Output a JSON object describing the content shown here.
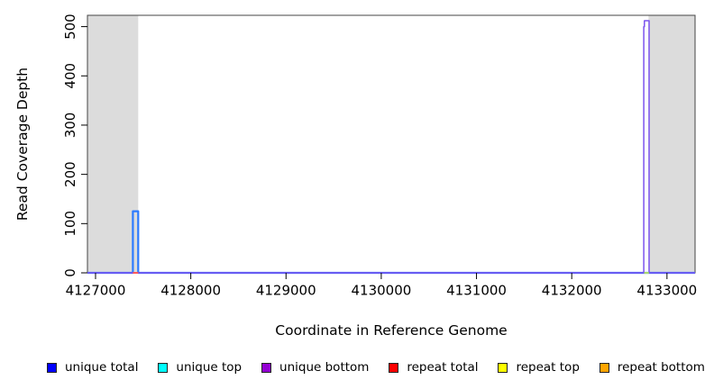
{
  "figure": {
    "background": "#FFFFFF",
    "xlabel": "Coordinate in Reference Genome",
    "ylabel": "Read Coverage Depth"
  },
  "chart_data": {
    "type": "line",
    "title": "",
    "xlabel": "Coordinate in Reference Genome",
    "ylabel": "Read Coverage Depth",
    "xlim": [
      4126915,
      4133295
    ],
    "ylim": [
      0,
      523
    ],
    "xticks": [
      4127000,
      4128000,
      4129000,
      4130000,
      4131000,
      4132000,
      4133000
    ],
    "yticks": [
      0,
      100,
      200,
      300,
      400,
      500
    ],
    "grid": false,
    "legend_position": "bottom",
    "box_color": "#444444",
    "shaded_regions": [
      {
        "name": "left-flank-region",
        "x0": 4126915,
        "x1": 4127448,
        "color": "#DCDCDC"
      },
      {
        "name": "right-flank-region",
        "x0": 4132806,
        "x1": 4133295,
        "color": "#DCDCDC"
      }
    ],
    "series": [
      {
        "name": "unique total",
        "legend_color": "#0000FF",
        "stroke": "#2e7bff",
        "width": 2.2,
        "points": [
          [
            4126915,
            0
          ],
          [
            4127392,
            0
          ],
          [
            4127392,
            125
          ],
          [
            4127448,
            125
          ],
          [
            4127448,
            0
          ],
          [
            4133295,
            0
          ]
        ]
      },
      {
        "name": "unique bottom",
        "legend_color": "#9400D3",
        "stroke": "#7b52ee",
        "width": 1.5,
        "points": [
          [
            4126915,
            0
          ],
          [
            4132756,
            0
          ],
          [
            4132756,
            500
          ],
          [
            4132763,
            500
          ],
          [
            4132763,
            512
          ],
          [
            4132812,
            512
          ],
          [
            4132812,
            0
          ],
          [
            4133295,
            0
          ]
        ]
      },
      {
        "name": "repeat total",
        "legend_color": "#FF0000",
        "stroke": "#ff5a5a",
        "width": 2,
        "points": [
          [
            4127392,
            0
          ],
          [
            4127448,
            0
          ]
        ]
      },
      {
        "name": "repeat top",
        "legend_color": "#FFFF00",
        "stroke": "#a9d96c",
        "width": 2,
        "points": [
          [
            4132760,
            0
          ],
          [
            4132810,
            0
          ]
        ]
      }
    ]
  },
  "legend": {
    "items": [
      {
        "label": "unique total",
        "color": "#0000FF"
      },
      {
        "label": "unique top",
        "color": "#00FFFF"
      },
      {
        "label": "unique bottom",
        "color": "#9400D3"
      },
      {
        "label": "repeat total",
        "color": "#FF0000"
      },
      {
        "label": "repeat top",
        "color": "#FFFF00"
      },
      {
        "label": "repeat bottom",
        "color": "#FFA500"
      }
    ]
  }
}
